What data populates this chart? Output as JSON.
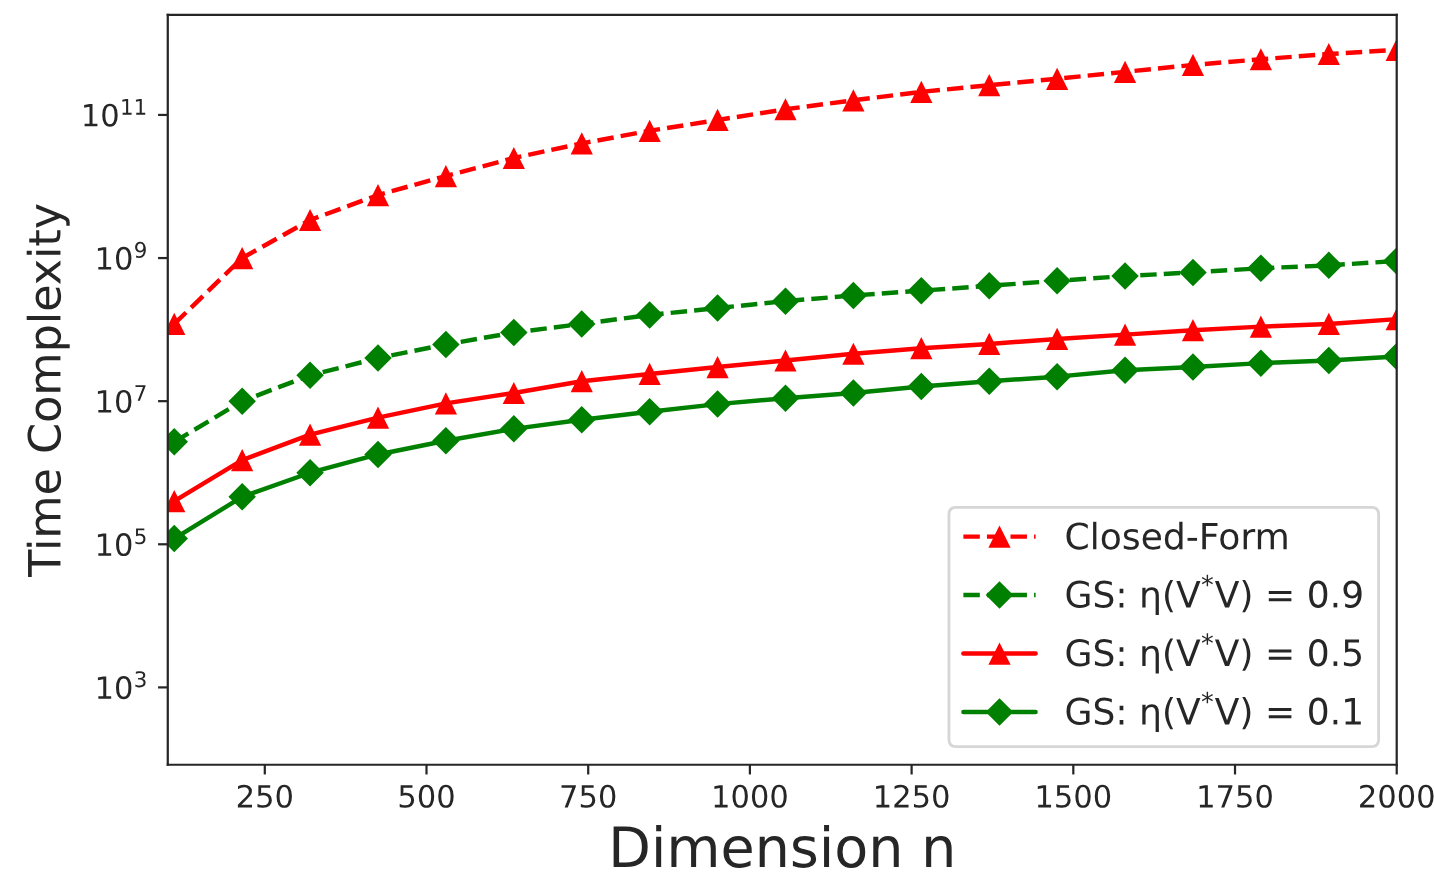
{
  "chart_data": {
    "type": "line",
    "xlabel": "Dimension n",
    "ylabel": "Time Complexity",
    "log": "y",
    "grid": false,
    "legend": "bottom right",
    "x": [
      110,
      215,
      320,
      425,
      530,
      635,
      740,
      845,
      950,
      1055,
      1160,
      1265,
      1370,
      1475,
      1580,
      1685,
      1790,
      1895,
      2000
    ],
    "xlim": [
      100,
      2000
    ],
    "xticks": [
      250,
      500,
      750,
      1000,
      1250,
      1500,
      1750,
      2000
    ],
    "ylim": [
      83,
      2500000000000.0
    ],
    "yticks": [
      {
        "value": 1000,
        "label": "10$^{3}$"
      },
      {
        "value": 100000,
        "label": "10$^{5}$"
      },
      {
        "value": 10000000,
        "label": "10$^{7}$"
      },
      {
        "value": 1000000000,
        "label": "10$^{9}$"
      },
      {
        "value": 100000000000,
        "label": "10$^{11}$"
      }
    ],
    "series": [
      {
        "name": "Closed-Form",
        "color": "#ff0000",
        "marker": "triangle",
        "line_style": "dashed",
        "values": [
          120000000.0,
          1000000000.0,
          3400000000.0,
          7600000000.0,
          14000000000.0,
          25000000000.0,
          40000000000.0,
          60000000000.0,
          85000000000.0,
          120000000000.0,
          160000000000.0,
          210000000000.0,
          260000000000.0,
          320000000000.0,
          400000000000.0,
          500000000000.0,
          600000000000.0,
          710000000000.0,
          810000000000.0
        ]
      },
      {
        "name": "GS: η(V$^{*}$V) = 0.9",
        "color": "#008000",
        "marker": "diamond",
        "line_style": "dashed",
        "values": [
          2700000.0,
          10000000.0,
          23000000.0,
          40000000.0,
          62000000.0,
          91000000.0,
          120000000.0,
          160000000.0,
          200000000.0,
          250000000.0,
          300000000.0,
          350000000.0,
          410000000.0,
          480000000.0,
          560000000.0,
          630000000.0,
          720000000.0,
          790000000.0,
          910000000.0
        ]
      },
      {
        "name": "GS: η(V$^{*}$V) = 0.5",
        "color": "#ff0000",
        "marker": "triangle",
        "line_style": "solid",
        "values": [
          400000.0,
          1500000.0,
          3400000.0,
          5900000.0,
          9300000.0,
          13000000.0,
          19000000.0,
          24000000.0,
          30000000.0,
          37000000.0,
          46000000.0,
          55000000.0,
          63000000.0,
          74000000.0,
          85000000.0,
          98000000.0,
          110000000.0,
          120000000.0,
          140000000.0
        ]
      },
      {
        "name": "GS: η(V$^{*}$V) = 0.1",
        "color": "#008000",
        "marker": "diamond",
        "line_style": "solid",
        "values": [
          120000.0,
          460000.0,
          1000000.0,
          1800000.0,
          2800000.0,
          4100000.0,
          5500000.0,
          7100000.0,
          9100000.0,
          11000000.0,
          13000000.0,
          16000000.0,
          19000000.0,
          22000000.0,
          27000000.0,
          30000000.0,
          34000000.0,
          37000000.0,
          42000000.0
        ]
      }
    ]
  }
}
